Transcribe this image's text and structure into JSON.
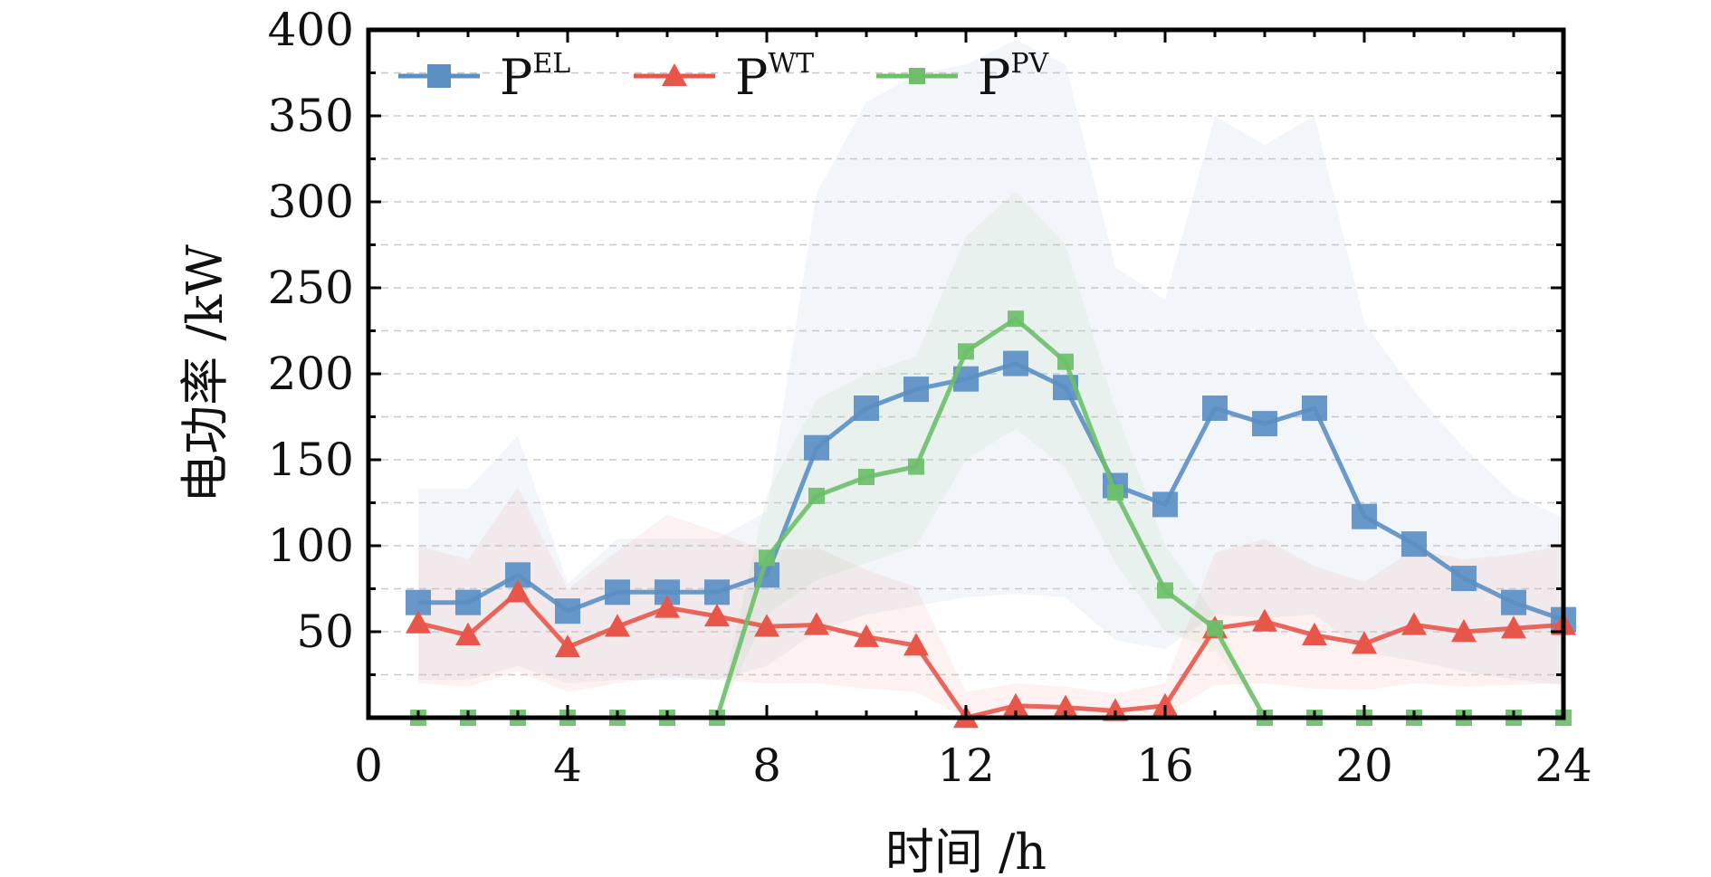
{
  "chart_data": {
    "type": "line",
    "xlabel": "时间 /h",
    "ylabel": "电功率 /kW",
    "xlim": [
      0,
      24
    ],
    "ylim": [
      0,
      400
    ],
    "xticks": [
      0,
      4,
      8,
      12,
      16,
      20,
      24
    ],
    "yticks": [
      50,
      100,
      150,
      200,
      250,
      300,
      350,
      400
    ],
    "grid": "horizontal dashed",
    "legend_position": "top-left",
    "x": [
      1,
      2,
      3,
      4,
      5,
      6,
      7,
      8,
      9,
      10,
      11,
      12,
      13,
      14,
      15,
      16,
      17,
      18,
      19,
      20,
      21,
      22,
      23,
      24
    ],
    "series": [
      {
        "name": "P",
        "name_sup": "EL",
        "color": "#5b8fc4",
        "marker": "square",
        "values": [
          67,
          67,
          83,
          62,
          73,
          73,
          73,
          83,
          157,
          180,
          191,
          197,
          206,
          192,
          135,
          124,
          180,
          171,
          180,
          117,
          101,
          81,
          67,
          57
        ],
        "band_upper": [
          133,
          133,
          164,
          78,
          104,
          104,
          104,
          120,
          305,
          358,
          374,
          380,
          394,
          380,
          262,
          243,
          350,
          333,
          350,
          230,
          190,
          157,
          130,
          116
        ],
        "band_lower": [
          22,
          22,
          30,
          20,
          22,
          22,
          22,
          30,
          50,
          60,
          65,
          70,
          72,
          70,
          45,
          40,
          60,
          58,
          60,
          38,
          33,
          27,
          22,
          19
        ]
      },
      {
        "name": "P",
        "name_sup": "WT",
        "color": "#e8564a",
        "marker": "triangle",
        "values": [
          55,
          48,
          73,
          41,
          53,
          64,
          59,
          53,
          54,
          47,
          42,
          0,
          7,
          6,
          4,
          7,
          52,
          56,
          48,
          43,
          54,
          50,
          52,
          54
        ],
        "band_upper": [
          100,
          92,
          134,
          75,
          97,
          118,
          108,
          97,
          99,
          86,
          76,
          15,
          20,
          18,
          14,
          20,
          96,
          104,
          88,
          79,
          98,
          92,
          95,
          100
        ],
        "band_lower": [
          20,
          18,
          27,
          15,
          20,
          24,
          22,
          20,
          20,
          17,
          15,
          0,
          2,
          2,
          1,
          2,
          19,
          20,
          17,
          16,
          20,
          18,
          19,
          20
        ]
      },
      {
        "name": "P",
        "name_sup": "PV",
        "color": "#6dbf6a",
        "marker": "square",
        "values": [
          0,
          0,
          0,
          0,
          0,
          0,
          0,
          93,
          129,
          140,
          146,
          213,
          232,
          207,
          131,
          74,
          52,
          0,
          0,
          0,
          0,
          0,
          0,
          0
        ],
        "band_upper": [
          0,
          0,
          0,
          0,
          0,
          0,
          0,
          130,
          185,
          200,
          210,
          280,
          306,
          275,
          180,
          100,
          60,
          0,
          0,
          0,
          0,
          0,
          0,
          0
        ],
        "band_lower": [
          0,
          0,
          0,
          0,
          0,
          0,
          0,
          60,
          80,
          90,
          100,
          150,
          168,
          145,
          90,
          50,
          40,
          0,
          0,
          0,
          0,
          0,
          0,
          0
        ]
      }
    ]
  }
}
